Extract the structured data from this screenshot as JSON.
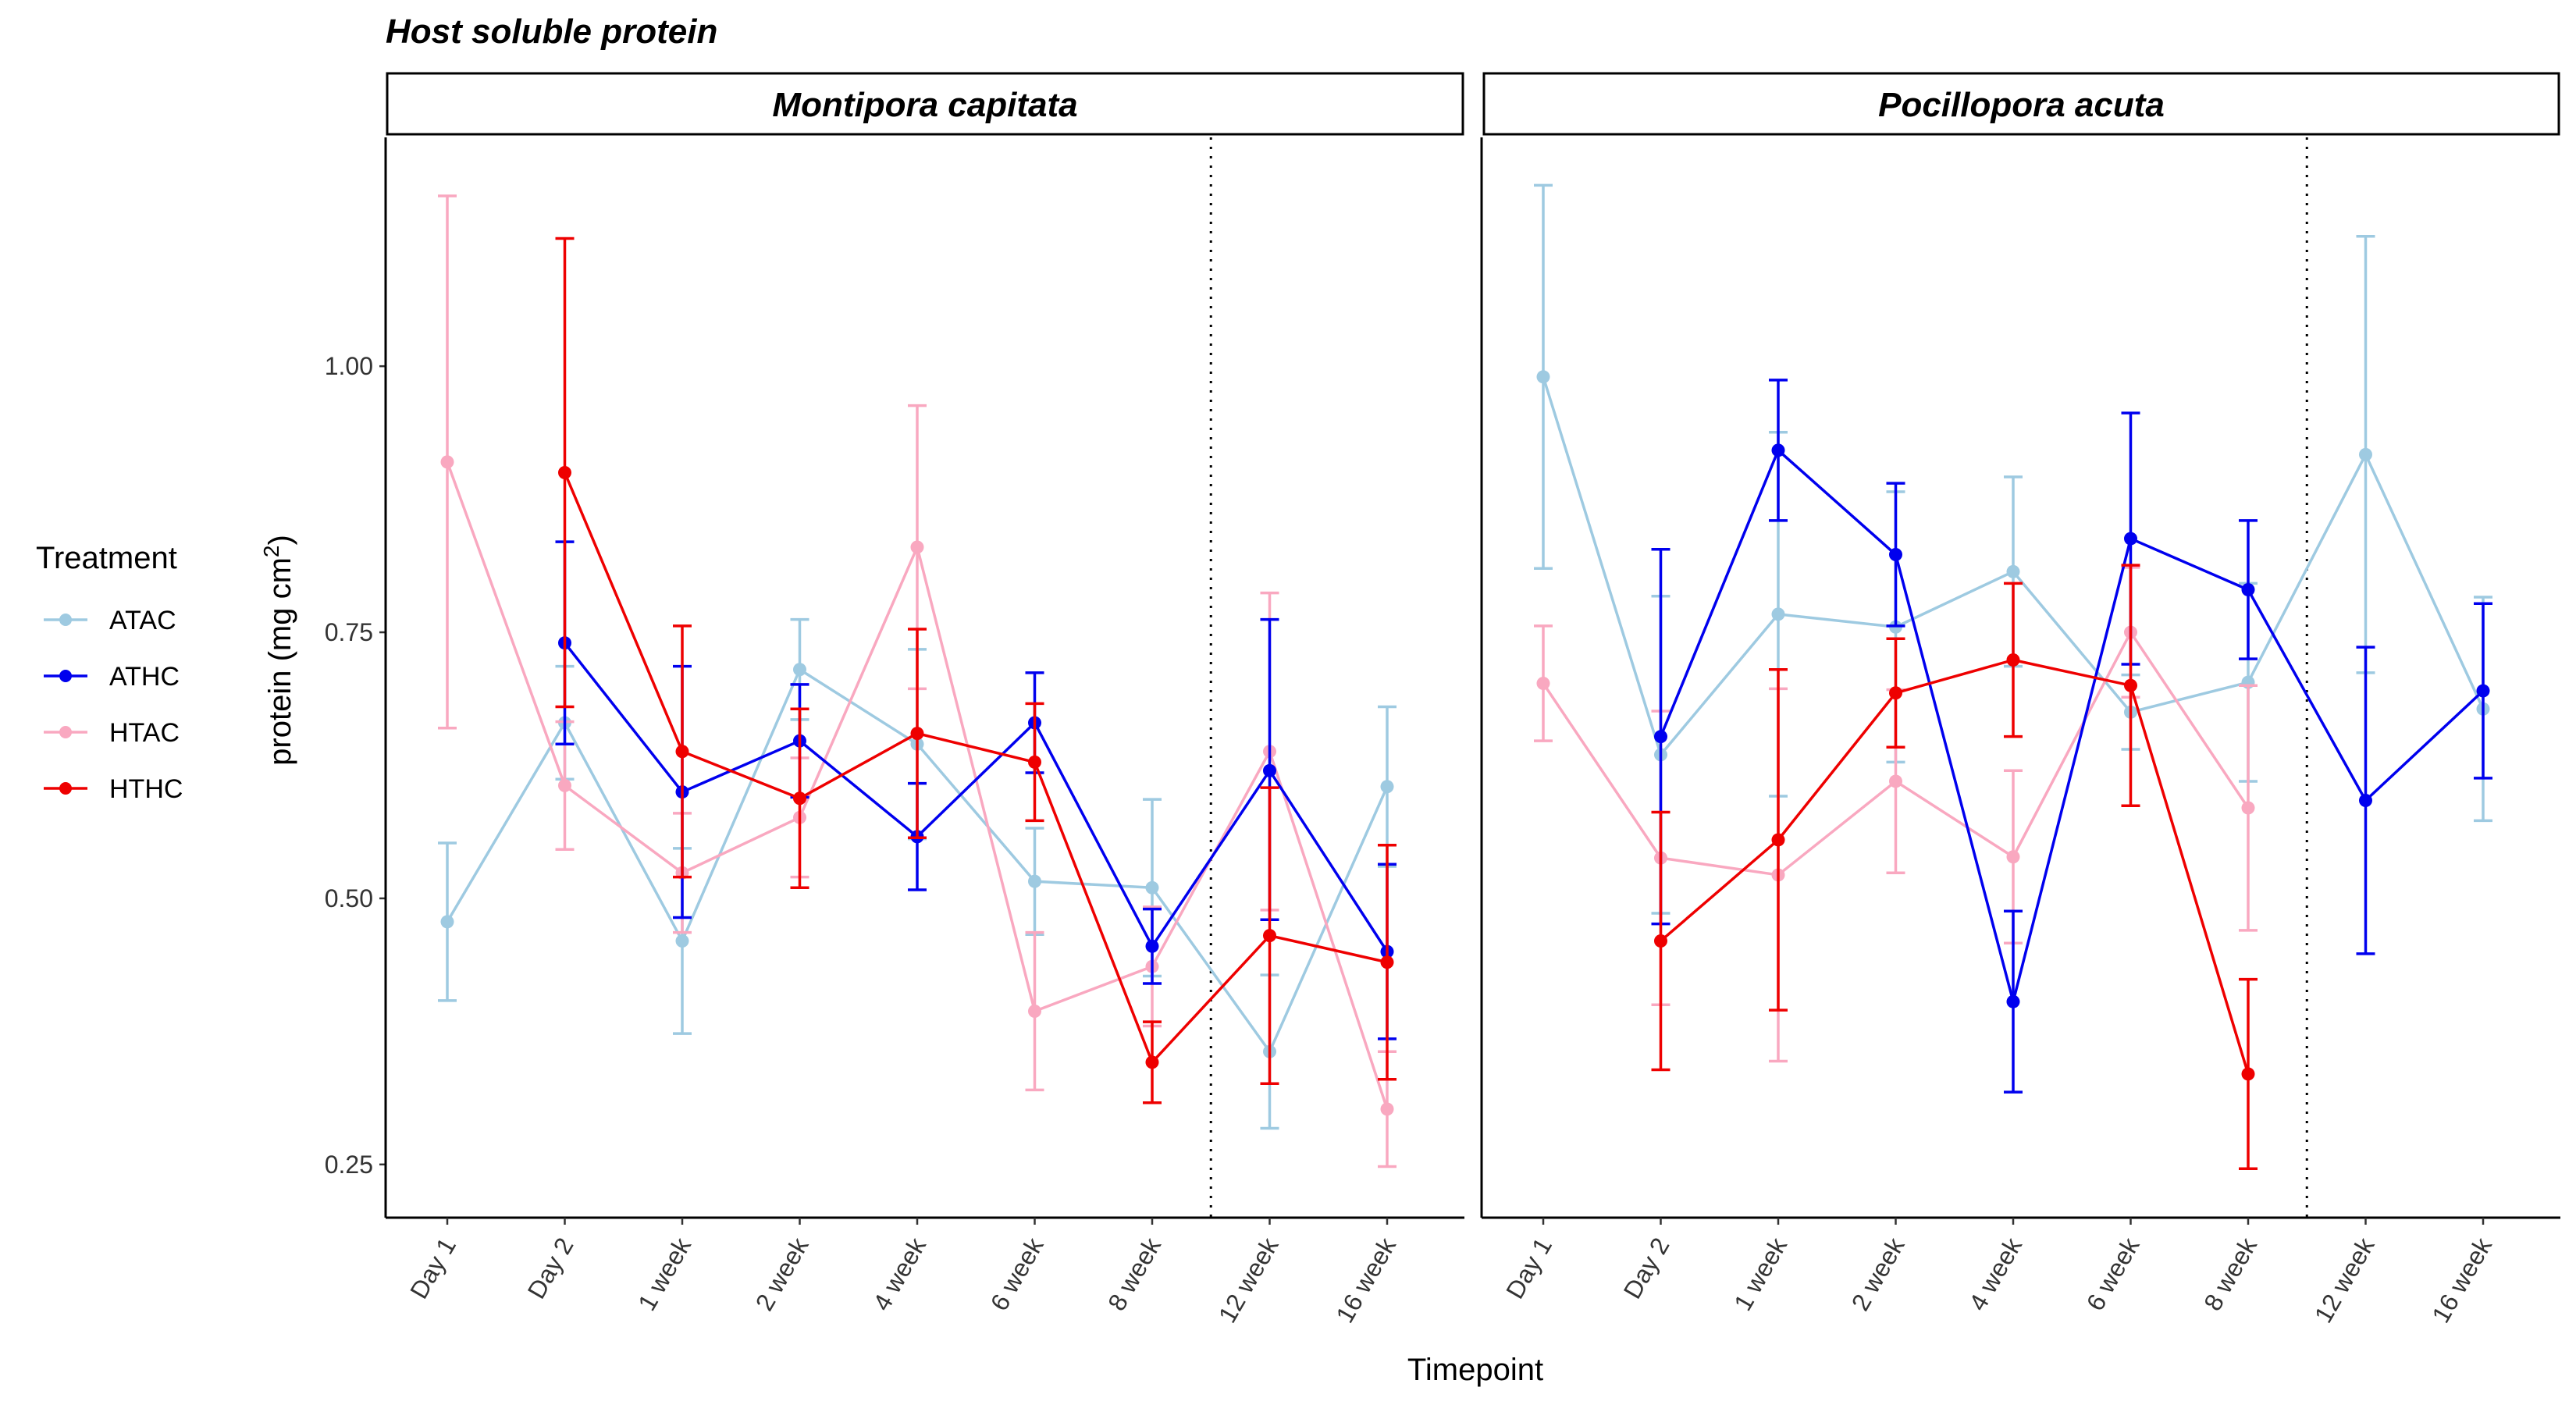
{
  "chart_data": {
    "type": "line",
    "title": "Host soluble protein",
    "xlabel": "Timepoint",
    "ylabel": "protein (mg cm",
    "ylabel_superscript": "2",
    "ylabel_suffix": ")",
    "categories": [
      "Day 1",
      "Day 2",
      "1 week",
      "2 week",
      "4 week",
      "6 week",
      "8 week",
      "12 week",
      "16 week"
    ],
    "yticks": [
      "0.25",
      "0.50",
      "0.75",
      "1.00"
    ],
    "ytick_values": [
      0.25,
      0.5,
      0.75,
      1.0
    ],
    "ylim": [
      0.2,
      1.215
    ],
    "legend": {
      "title": "Treatment",
      "position": "left"
    },
    "grid": false,
    "reference_line_between": [
      "8 week",
      "12 week"
    ],
    "colors": {
      "ATAC": "#9ecae1",
      "ATHC": "#0000ee",
      "HTAC": "#f9a8c0",
      "HTHC": "#ee0000"
    },
    "panels": [
      {
        "label": "Montipora capitata",
        "series": [
          {
            "name": "ATAC",
            "values": [
              0.478,
              0.665,
              0.46,
              0.715,
              0.645,
              0.516,
              0.51,
              0.356,
              0.605
            ],
            "lower": [
              0.404,
              0.612,
              0.373,
              0.668,
              0.556,
              0.466,
              0.427,
              0.284,
              0.53
            ],
            "upper": [
              0.552,
              0.718,
              0.547,
              0.762,
              0.734,
              0.566,
              0.593,
              0.428,
              0.68
            ]
          },
          {
            "name": "ATHC",
            "values": [
              null,
              0.74,
              0.6,
              0.648,
              0.558,
              0.665,
              0.455,
              0.62,
              0.45
            ],
            "lower": [
              null,
              0.645,
              0.482,
              0.595,
              0.508,
              0.618,
              0.42,
              0.48,
              0.368
            ],
            "upper": [
              null,
              0.835,
              0.718,
              0.701,
              0.608,
              0.712,
              0.49,
              0.762,
              0.532
            ]
          },
          {
            "name": "HTAC",
            "values": [
              0.91,
              0.606,
              0.524,
              0.576,
              0.83,
              0.394,
              0.436,
              0.638,
              0.302
            ],
            "lower": [
              0.66,
              0.546,
              0.468,
              0.52,
              0.697,
              0.32,
              0.38,
              0.489,
              0.248
            ],
            "upper": [
              1.16,
              0.666,
              0.58,
              0.632,
              0.963,
              0.468,
              0.492,
              0.787,
              0.356
            ]
          },
          {
            "name": "HTHC",
            "values": [
              null,
              0.9,
              0.638,
              0.594,
              0.655,
              0.628,
              0.346,
              0.465,
              0.44
            ],
            "lower": [
              null,
              0.68,
              0.52,
              0.51,
              0.557,
              0.573,
              0.308,
              0.326,
              0.33
            ],
            "upper": [
              null,
              1.12,
              0.756,
              0.678,
              0.753,
              0.683,
              0.384,
              0.604,
              0.55
            ]
          }
        ]
      },
      {
        "label": "Pocillopora acuta",
        "series": [
          {
            "name": "ATAC",
            "values": [
              0.99,
              0.635,
              0.767,
              0.755,
              0.807,
              0.675,
              0.703,
              0.917,
              0.678
            ],
            "lower": [
              0.81,
              0.486,
              0.596,
              0.628,
              0.718,
              0.64,
              0.61,
              0.712,
              0.573
            ],
            "upper": [
              1.17,
              0.784,
              0.938,
              0.882,
              0.896,
              0.71,
              0.796,
              1.122,
              0.783
            ]
          },
          {
            "name": "ATHC",
            "values": [
              null,
              0.652,
              0.921,
              0.823,
              0.403,
              0.838,
              0.79,
              0.592,
              0.695
            ],
            "lower": [
              null,
              0.476,
              0.855,
              0.756,
              0.318,
              0.72,
              0.725,
              0.448,
              0.613
            ],
            "upper": [
              null,
              0.828,
              0.987,
              0.89,
              0.488,
              0.956,
              0.855,
              0.736,
              0.777
            ]
          },
          {
            "name": "HTAC",
            "values": [
              0.702,
              0.538,
              0.522,
              0.61,
              0.539,
              0.75,
              0.585,
              null,
              null
            ],
            "lower": [
              0.648,
              0.4,
              0.347,
              0.524,
              0.458,
              0.689,
              0.47,
              null,
              null
            ],
            "upper": [
              0.756,
              0.676,
              0.697,
              0.696,
              0.62,
              0.811,
              0.7,
              null,
              null
            ]
          },
          {
            "name": "HTHC",
            "values": [
              null,
              0.46,
              0.555,
              0.693,
              0.724,
              0.7,
              0.335,
              null,
              null
            ],
            "lower": [
              null,
              0.339,
              0.395,
              0.642,
              0.652,
              0.587,
              0.246,
              null,
              null
            ],
            "upper": [
              null,
              0.581,
              0.715,
              0.744,
              0.796,
              0.813,
              0.424,
              null,
              null
            ]
          }
        ]
      }
    ]
  }
}
